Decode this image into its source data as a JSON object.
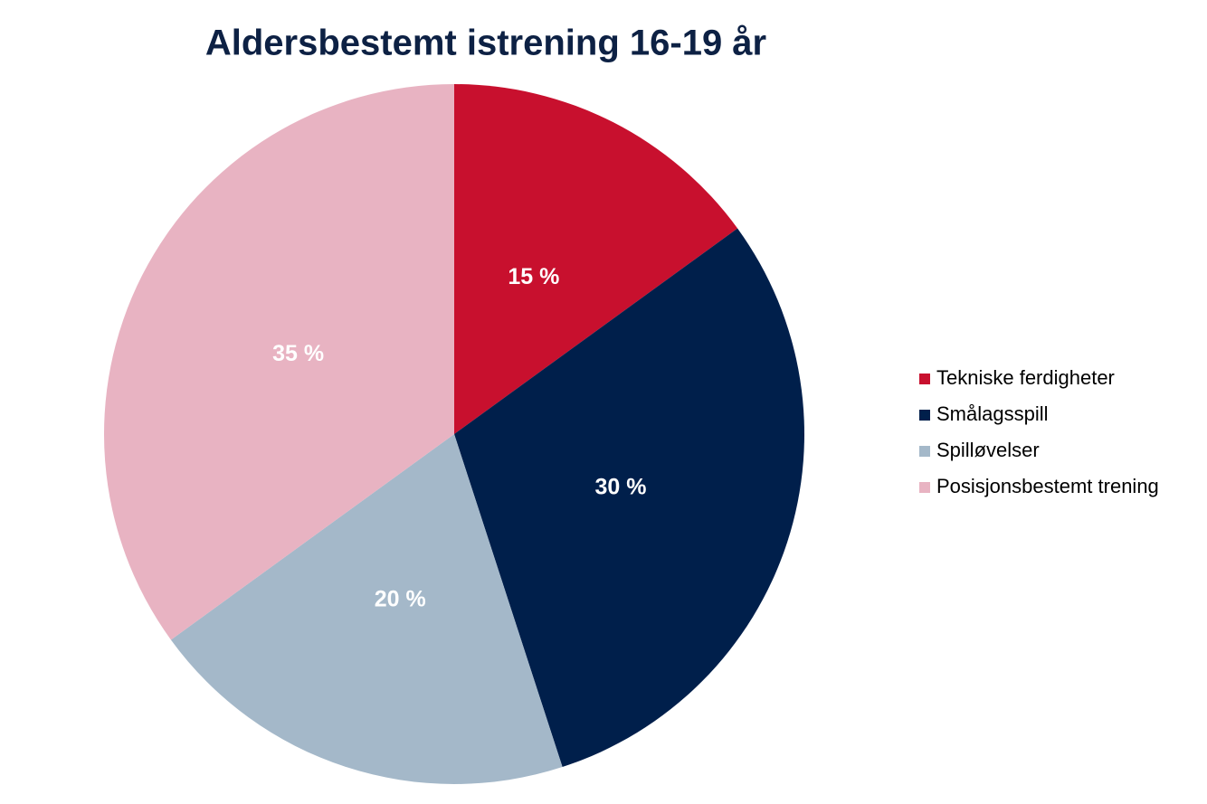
{
  "chart_data": {
    "type": "pie",
    "title": "Aldersbestemt istrening 16-19 år",
    "categories": [
      "Tekniske ferdigheter",
      "Smålagsspill",
      "Spilløvelser",
      "Posisjonsbestemt trening"
    ],
    "values": [
      15,
      30,
      20,
      35
    ],
    "value_labels": [
      "15 %",
      "30 %",
      "20 %",
      "35 %"
    ],
    "colors": [
      "#c8102e",
      "#001f4b",
      "#a4b8c9",
      "#e8b3c2"
    ],
    "legend": "right"
  }
}
